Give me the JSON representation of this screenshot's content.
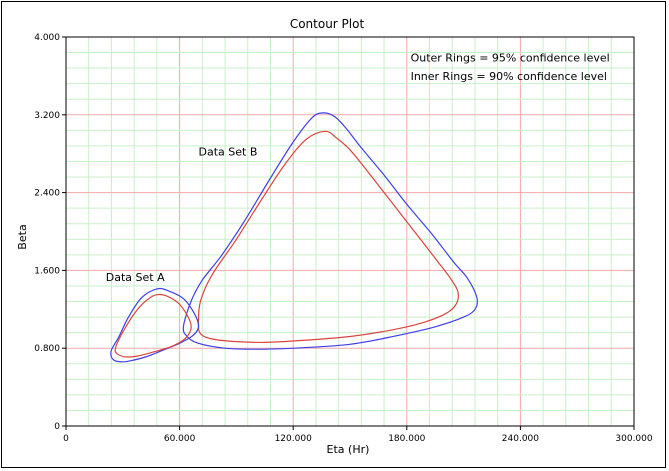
{
  "chart_data": {
    "type": "line",
    "title": "Contour Plot",
    "xlabel": "Eta (Hr)",
    "ylabel": "Beta",
    "xlim": [
      0,
      300
    ],
    "ylim": [
      0,
      4
    ],
    "x_ticks": [
      "0",
      "60.000",
      "120.000",
      "180.000",
      "240.000",
      "300.000"
    ],
    "y_ticks": [
      "0",
      "0.800",
      "1.600",
      "2.400",
      "3.200",
      "4.000"
    ],
    "grid": true,
    "annotations": [
      {
        "text": "Outer Rings = 95% confidence level",
        "x": 182,
        "y": 3.75
      },
      {
        "text": "Inner Rings = 90% confidence level",
        "x": 182,
        "y": 3.56
      },
      {
        "text": "Data Set B",
        "x": 70,
        "y": 2.78
      },
      {
        "text": "Data Set A",
        "x": 21,
        "y": 1.49
      }
    ],
    "colors": {
      "outer": "#3f3fe6",
      "inner": "#d9453f",
      "grid_major": "#f2aaaa",
      "grid_minor": "#c9efc9"
    },
    "series": [
      {
        "ring": "set-b-outer-95",
        "color": "#3f3fe6",
        "points": [
          [
            136,
            3.22
          ],
          [
            142,
            3.18
          ],
          [
            148,
            3.06
          ],
          [
            156,
            2.86
          ],
          [
            168,
            2.58
          ],
          [
            180,
            2.28
          ],
          [
            193,
            1.98
          ],
          [
            205,
            1.68
          ],
          [
            212,
            1.52
          ],
          [
            217,
            1.32
          ],
          [
            216,
            1.2
          ],
          [
            210,
            1.12
          ],
          [
            195,
            1.02
          ],
          [
            175,
            0.93
          ],
          [
            150,
            0.84
          ],
          [
            120,
            0.8
          ],
          [
            100,
            0.79
          ],
          [
            84,
            0.8
          ],
          [
            70,
            0.85
          ],
          [
            64,
            0.92
          ],
          [
            62,
            1.02
          ],
          [
            66,
            1.28
          ],
          [
            72,
            1.5
          ],
          [
            82,
            1.75
          ],
          [
            94,
            2.1
          ],
          [
            108,
            2.55
          ],
          [
            120,
            2.92
          ],
          [
            130,
            3.17
          ],
          [
            136,
            3.22
          ]
        ]
      },
      {
        "ring": "set-b-inner-90",
        "color": "#d9453f",
        "points": [
          [
            137,
            3.03
          ],
          [
            143,
            2.96
          ],
          [
            150,
            2.84
          ],
          [
            160,
            2.6
          ],
          [
            172,
            2.3
          ],
          [
            184,
            2.0
          ],
          [
            196,
            1.7
          ],
          [
            203,
            1.52
          ],
          [
            207,
            1.38
          ],
          [
            206,
            1.25
          ],
          [
            200,
            1.15
          ],
          [
            188,
            1.06
          ],
          [
            170,
            0.98
          ],
          [
            150,
            0.92
          ],
          [
            125,
            0.88
          ],
          [
            105,
            0.86
          ],
          [
            88,
            0.87
          ],
          [
            76,
            0.9
          ],
          [
            71,
            0.95
          ],
          [
            70,
            1.05
          ],
          [
            71,
            1.28
          ],
          [
            77,
            1.55
          ],
          [
            90,
            1.92
          ],
          [
            104,
            2.35
          ],
          [
            116,
            2.7
          ],
          [
            127,
            2.95
          ],
          [
            137,
            3.03
          ]
        ]
      },
      {
        "ring": "set-a-outer-95",
        "color": "#3f3fe6",
        "points": [
          [
            48,
            1.41
          ],
          [
            54,
            1.39
          ],
          [
            62,
            1.31
          ],
          [
            68,
            1.15
          ],
          [
            70,
            1.02
          ],
          [
            67,
            0.93
          ],
          [
            60,
            0.85
          ],
          [
            50,
            0.77
          ],
          [
            42,
            0.71
          ],
          [
            34,
            0.67
          ],
          [
            30,
            0.66
          ],
          [
            26,
            0.67
          ],
          [
            24,
            0.71
          ],
          [
            24,
            0.78
          ],
          [
            28,
            0.92
          ],
          [
            33,
            1.12
          ],
          [
            40,
            1.32
          ],
          [
            48,
            1.41
          ]
        ]
      },
      {
        "ring": "set-a-inner-90",
        "color": "#d9453f",
        "points": [
          [
            48,
            1.35
          ],
          [
            54,
            1.33
          ],
          [
            60,
            1.25
          ],
          [
            65,
            1.1
          ],
          [
            66,
            1.0
          ],
          [
            63,
            0.9
          ],
          [
            56,
            0.82
          ],
          [
            46,
            0.76
          ],
          [
            38,
            0.72
          ],
          [
            32,
            0.71
          ],
          [
            28,
            0.73
          ],
          [
            26,
            0.77
          ],
          [
            27,
            0.85
          ],
          [
            31,
            1.0
          ],
          [
            37,
            1.18
          ],
          [
            43,
            1.3
          ],
          [
            48,
            1.35
          ]
        ]
      }
    ]
  }
}
